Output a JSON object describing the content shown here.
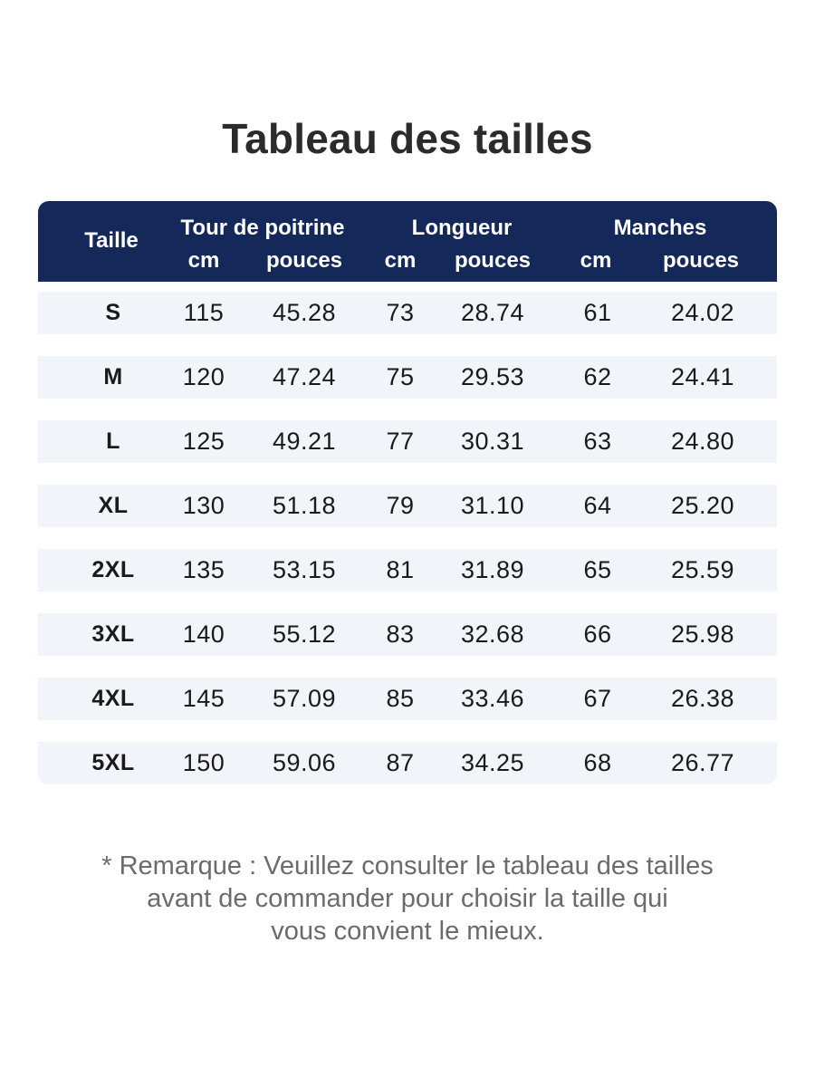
{
  "title": "Tableau des tailles",
  "table": {
    "headers": {
      "size": "Taille",
      "chest": "Tour de poitrine",
      "length": "Longueur",
      "sleeves": "Manches",
      "cm": "cm",
      "inches": "pouces"
    },
    "rows": [
      {
        "size": "S",
        "chest_cm": "115",
        "chest_in": "45.28",
        "length_cm": "73",
        "length_in": "28.74",
        "sleeve_cm": "61",
        "sleeve_in": "24.02"
      },
      {
        "size": "M",
        "chest_cm": "120",
        "chest_in": "47.24",
        "length_cm": "75",
        "length_in": "29.53",
        "sleeve_cm": "62",
        "sleeve_in": "24.41"
      },
      {
        "size": "L",
        "chest_cm": "125",
        "chest_in": "49.21",
        "length_cm": "77",
        "length_in": "30.31",
        "sleeve_cm": "63",
        "sleeve_in": "24.80"
      },
      {
        "size": "XL",
        "chest_cm": "130",
        "chest_in": "51.18",
        "length_cm": "79",
        "length_in": "31.10",
        "sleeve_cm": "64",
        "sleeve_in": "25.20"
      },
      {
        "size": "2XL",
        "chest_cm": "135",
        "chest_in": "53.15",
        "length_cm": "81",
        "length_in": "31.89",
        "sleeve_cm": "65",
        "sleeve_in": "25.59"
      },
      {
        "size": "3XL",
        "chest_cm": "140",
        "chest_in": "55.12",
        "length_cm": "83",
        "length_in": "32.68",
        "sleeve_cm": "66",
        "sleeve_in": "25.98"
      },
      {
        "size": "4XL",
        "chest_cm": "145",
        "chest_in": "57.09",
        "length_cm": "85",
        "length_in": "33.46",
        "sleeve_cm": "67",
        "sleeve_in": "26.38"
      },
      {
        "size": "5XL",
        "chest_cm": "150",
        "chest_in": "59.06",
        "length_cm": "87",
        "length_in": "34.25",
        "sleeve_cm": "68",
        "sleeve_in": "26.77"
      }
    ]
  },
  "note": {
    "lines": [
      "* Remarque : Veuillez consulter le tableau des tailles",
      "avant de commander pour choisir la taille qui",
      "vous convient le mieux."
    ]
  },
  "colors": {
    "header_bg": "#14295a",
    "row_bg": "#f1f4f8",
    "note_text": "#6b6b6b"
  }
}
